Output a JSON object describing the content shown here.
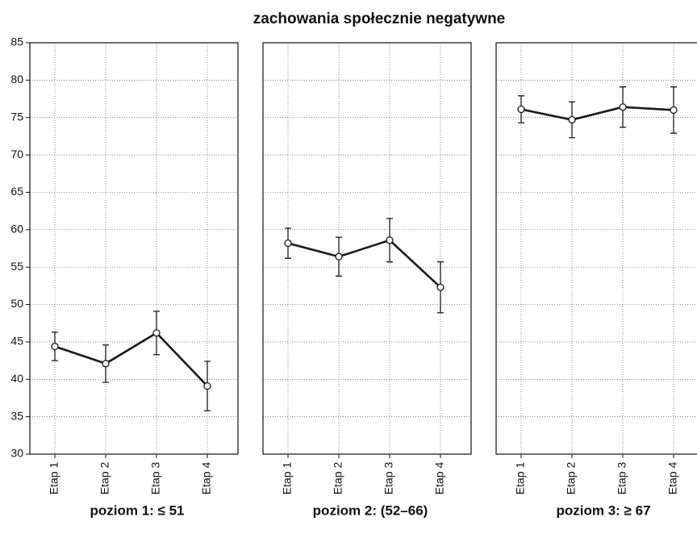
{
  "title": "zachowania społecznie negatywne",
  "chart_data": [
    {
      "type": "line",
      "xlabel": "poziom 1: ≤ 51",
      "categories": [
        "Etap 1",
        "Etap 2",
        "Etap 3",
        "Etap 4"
      ],
      "series": [
        {
          "color": "#1a1a1a",
          "values": [
            44.4,
            42.1,
            46.2,
            39.1
          ],
          "errors": [
            1.9,
            2.5,
            2.9,
            3.3
          ]
        }
      ],
      "ylim": [
        30,
        85
      ],
      "yticks": [
        30,
        35,
        40,
        45,
        50,
        55,
        60,
        65,
        70,
        75,
        80,
        85
      ],
      "grid": true
    },
    {
      "type": "line",
      "xlabel": "poziom 2: (52–66)",
      "categories": [
        "Etap 1",
        "Etap 2",
        "Etap 3",
        "Etap 4"
      ],
      "series": [
        {
          "color": "#1a1a1a",
          "values": [
            58.2,
            56.4,
            58.6,
            52.3
          ],
          "errors": [
            2.0,
            2.6,
            2.9,
            3.4
          ]
        }
      ],
      "ylim": [
        30,
        85
      ],
      "yticks": [
        30,
        35,
        40,
        45,
        50,
        55,
        60,
        65,
        70,
        75,
        80,
        85
      ],
      "grid": true
    },
    {
      "type": "line",
      "xlabel": "poziom 3: ≥ 67",
      "categories": [
        "Etap 1",
        "Etap 2",
        "Etap 3",
        "Etap 4"
      ],
      "series": [
        {
          "color": "#1a1a1a",
          "values": [
            76.1,
            74.7,
            76.4,
            76.0
          ],
          "errors": [
            1.8,
            2.4,
            2.7,
            3.1
          ]
        }
      ],
      "ylim": [
        30,
        85
      ],
      "yticks": [
        30,
        35,
        40,
        45,
        50,
        55,
        60,
        65,
        70,
        75,
        80,
        85
      ],
      "grid": true
    }
  ]
}
